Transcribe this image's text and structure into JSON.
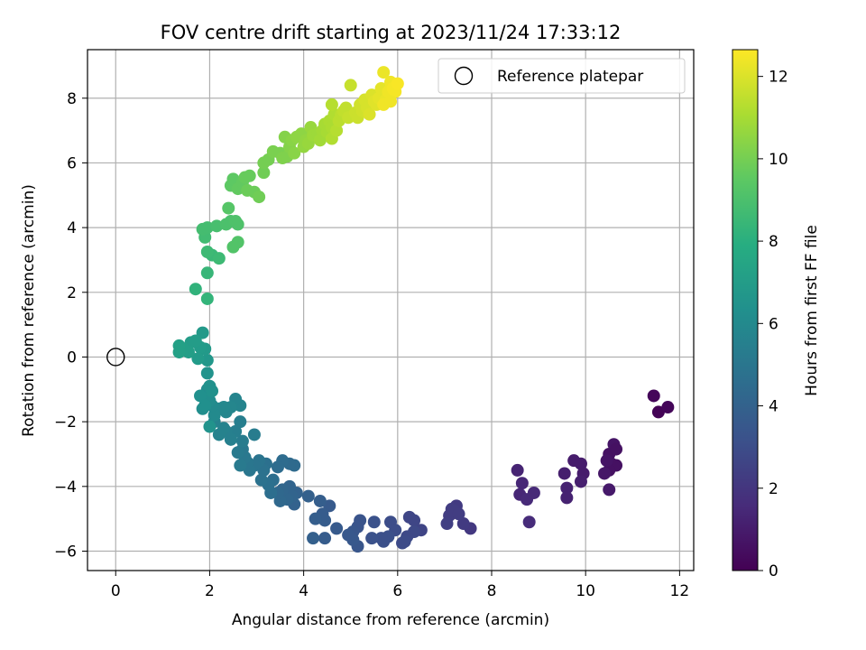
{
  "chart_data": {
    "type": "scatter",
    "title": "FOV centre drift starting at 2023/11/24 17:33:12",
    "xlabel": "Angular distance from reference (arcmin)",
    "ylabel": "Rotation from reference (arcmin)",
    "xlim": [
      -0.6,
      12.3
    ],
    "ylim": [
      -6.6,
      9.5
    ],
    "xticks": [
      0,
      2,
      4,
      6,
      8,
      10,
      12
    ],
    "yticks": [
      -6,
      -4,
      -2,
      0,
      2,
      4,
      6,
      8
    ],
    "grid": true,
    "legend": {
      "placement": "top-right",
      "entries": [
        "Reference platepar"
      ]
    },
    "reference_point": {
      "x": 0,
      "y": 0
    },
    "colorbar": {
      "label": "Hours from first FF file",
      "range": [
        0,
        12.65
      ],
      "ticks": [
        0,
        2,
        4,
        6,
        8,
        10,
        12
      ],
      "colormap": "viridis"
    },
    "points": [
      [
        11.45,
        -1.2,
        0.2
      ],
      [
        11.55,
        -1.7,
        0.1
      ],
      [
        11.75,
        -1.55,
        0.2
      ],
      [
        10.5,
        -3.0,
        0.6
      ],
      [
        10.6,
        -2.7,
        0.7
      ],
      [
        10.65,
        -2.85,
        0.6
      ],
      [
        10.55,
        -3.3,
        0.6
      ],
      [
        10.65,
        -3.35,
        0.6
      ],
      [
        10.5,
        -3.5,
        0.6
      ],
      [
        10.45,
        -3.2,
        0.7
      ],
      [
        10.4,
        -3.6,
        0.8
      ],
      [
        10.5,
        -4.1,
        0.9
      ],
      [
        9.75,
        -3.2,
        1.0
      ],
      [
        9.9,
        -3.3,
        1.0
      ],
      [
        9.95,
        -3.6,
        1.0
      ],
      [
        9.9,
        -3.85,
        1.1
      ],
      [
        9.55,
        -3.6,
        1.1
      ],
      [
        9.6,
        -4.05,
        1.2
      ],
      [
        9.6,
        -4.35,
        1.2
      ],
      [
        8.55,
        -3.5,
        1.3
      ],
      [
        8.65,
        -3.9,
        1.4
      ],
      [
        8.6,
        -4.25,
        1.4
      ],
      [
        8.75,
        -4.4,
        1.5
      ],
      [
        8.9,
        -4.2,
        1.5
      ],
      [
        8.8,
        -5.1,
        1.6
      ],
      [
        7.55,
        -5.3,
        2.1
      ],
      [
        7.4,
        -5.15,
        2.2
      ],
      [
        7.25,
        -4.6,
        2.2
      ],
      [
        7.15,
        -4.7,
        2.3
      ],
      [
        7.1,
        -4.9,
        2.3
      ],
      [
        7.05,
        -5.15,
        2.4
      ],
      [
        7.2,
        -4.75,
        2.3
      ],
      [
        7.3,
        -4.85,
        2.3
      ],
      [
        6.5,
        -5.35,
        2.6
      ],
      [
        6.35,
        -5.05,
        2.7
      ],
      [
        6.25,
        -4.95,
        2.7
      ],
      [
        6.35,
        -5.4,
        2.8
      ],
      [
        6.2,
        -5.55,
        2.8
      ],
      [
        6.1,
        -5.75,
        2.9
      ],
      [
        6.15,
        -5.7,
        2.9
      ],
      [
        5.85,
        -5.1,
        3.0
      ],
      [
        5.95,
        -5.35,
        3.0
      ],
      [
        5.8,
        -5.55,
        3.1
      ],
      [
        5.7,
        -5.7,
        3.1
      ],
      [
        5.65,
        -5.6,
        3.1
      ],
      [
        5.5,
        -5.1,
        3.2
      ],
      [
        5.45,
        -5.6,
        3.2
      ],
      [
        5.2,
        -5.05,
        3.3
      ],
      [
        5.15,
        -5.25,
        3.3
      ],
      [
        5.05,
        -5.4,
        3.4
      ],
      [
        5.15,
        -5.85,
        3.4
      ],
      [
        5.05,
        -5.65,
        3.5
      ],
      [
        4.95,
        -5.5,
        3.5
      ],
      [
        4.7,
        -5.3,
        3.6
      ],
      [
        4.55,
        -4.6,
        3.6
      ],
      [
        4.45,
        -5.05,
        3.7
      ],
      [
        4.45,
        -5.6,
        3.7
      ],
      [
        4.4,
        -4.85,
        3.7
      ],
      [
        4.35,
        -4.45,
        3.8
      ],
      [
        4.25,
        -5.0,
        3.8
      ],
      [
        4.2,
        -5.6,
        3.9
      ],
      [
        4.1,
        -4.3,
        3.9
      ],
      [
        3.8,
        -4.55,
        4.0
      ],
      [
        3.85,
        -4.2,
        4.0
      ],
      [
        3.7,
        -4.0,
        4.1
      ],
      [
        3.75,
        -4.3,
        4.1
      ],
      [
        3.65,
        -4.4,
        4.2
      ],
      [
        3.55,
        -4.1,
        4.2
      ],
      [
        3.5,
        -4.45,
        4.3
      ],
      [
        3.45,
        -4.2,
        4.3
      ],
      [
        3.8,
        -3.35,
        4.4
      ],
      [
        3.7,
        -3.3,
        4.4
      ],
      [
        3.55,
        -3.2,
        4.5
      ],
      [
        3.45,
        -3.4,
        4.5
      ],
      [
        3.35,
        -3.8,
        4.6
      ],
      [
        3.3,
        -4.2,
        4.6
      ],
      [
        3.25,
        -3.95,
        4.7
      ],
      [
        3.2,
        -3.3,
        4.7
      ],
      [
        3.15,
        -3.5,
        4.8
      ],
      [
        3.1,
        -3.8,
        4.8
      ],
      [
        3.05,
        -3.2,
        4.9
      ],
      [
        2.95,
        -3.35,
        4.9
      ],
      [
        2.85,
        -3.5,
        5.0
      ],
      [
        2.8,
        -3.25,
        5.0
      ],
      [
        2.75,
        -3.1,
        5.1
      ],
      [
        2.7,
        -2.85,
        5.1
      ],
      [
        2.65,
        -3.35,
        5.2
      ],
      [
        2.6,
        -2.95,
        5.2
      ],
      [
        2.95,
        -2.4,
        5.3
      ],
      [
        2.7,
        -2.6,
        5.3
      ],
      [
        2.65,
        -2.0,
        5.4
      ],
      [
        2.55,
        -2.3,
        5.4
      ],
      [
        2.45,
        -2.55,
        5.5
      ],
      [
        2.35,
        -2.3,
        5.5
      ],
      [
        2.3,
        -2.2,
        5.6
      ],
      [
        2.2,
        -2.4,
        5.6
      ],
      [
        2.1,
        -2.0,
        5.6
      ],
      [
        2.65,
        -1.5,
        5.7
      ],
      [
        2.55,
        -1.3,
        5.7
      ],
      [
        2.45,
        -1.55,
        5.8
      ],
      [
        2.35,
        -1.7,
        5.8
      ],
      [
        2.3,
        -1.55,
        5.9
      ],
      [
        2.2,
        -1.6,
        5.9
      ],
      [
        2.1,
        -1.8,
        6.0
      ],
      [
        2.05,
        -1.5,
        6.0
      ],
      [
        2.0,
        -1.35,
        6.1
      ],
      [
        1.95,
        -1.0,
        6.1
      ],
      [
        1.9,
        -1.25,
        6.2
      ],
      [
        1.85,
        -1.6,
        6.2
      ],
      [
        1.8,
        -1.2,
        6.3
      ],
      [
        1.9,
        -1.5,
        6.3
      ],
      [
        2.0,
        -0.9,
        6.4
      ],
      [
        2.05,
        -1.05,
        6.4
      ],
      [
        2.0,
        -2.15,
        6.5
      ],
      [
        1.95,
        -0.5,
        6.5
      ],
      [
        1.95,
        -0.1,
        6.7
      ],
      [
        1.9,
        0.25,
        6.8
      ],
      [
        1.85,
        0.75,
        6.8
      ],
      [
        1.8,
        0.3,
        6.9
      ],
      [
        1.75,
        -0.05,
        6.9
      ],
      [
        1.7,
        0.5,
        7.0
      ],
      [
        1.6,
        0.45,
        7.0
      ],
      [
        1.55,
        0.15,
        7.1
      ],
      [
        1.45,
        0.25,
        7.1
      ],
      [
        1.35,
        0.35,
        7.2
      ],
      [
        1.35,
        0.15,
        7.2
      ],
      [
        1.7,
        2.1,
        8.2
      ],
      [
        1.95,
        1.8,
        8.3
      ],
      [
        1.95,
        2.6,
        8.4
      ],
      [
        2.05,
        3.15,
        8.5
      ],
      [
        1.95,
        3.25,
        8.6
      ],
      [
        2.2,
        3.05,
        8.6
      ],
      [
        1.9,
        3.7,
        8.7
      ],
      [
        1.85,
        3.95,
        8.8
      ],
      [
        1.95,
        4.0,
        8.8
      ],
      [
        2.15,
        4.05,
        8.9
      ],
      [
        2.35,
        4.1,
        9.0
      ],
      [
        2.45,
        4.2,
        9.0
      ],
      [
        2.55,
        4.2,
        9.1
      ],
      [
        2.6,
        4.1,
        9.1
      ],
      [
        2.6,
        3.55,
        9.2
      ],
      [
        2.5,
        3.4,
        9.2
      ],
      [
        2.4,
        4.6,
        9.3
      ],
      [
        2.45,
        5.3,
        9.5
      ],
      [
        2.5,
        5.5,
        9.5
      ],
      [
        2.6,
        5.2,
        9.6
      ],
      [
        2.7,
        5.4,
        9.6
      ],
      [
        2.75,
        5.55,
        9.7
      ],
      [
        2.85,
        5.6,
        9.7
      ],
      [
        2.8,
        5.15,
        9.8
      ],
      [
        2.95,
        5.1,
        9.8
      ],
      [
        3.05,
        4.95,
        9.9
      ],
      [
        3.15,
        5.7,
        9.9
      ],
      [
        3.15,
        6.0,
        10.0
      ],
      [
        3.25,
        6.1,
        10.0
      ],
      [
        3.35,
        6.35,
        10.1
      ],
      [
        3.5,
        6.3,
        10.1
      ],
      [
        3.55,
        6.15,
        10.2
      ],
      [
        3.65,
        6.2,
        10.2
      ],
      [
        3.6,
        6.8,
        10.3
      ],
      [
        3.7,
        6.5,
        10.3
      ],
      [
        3.75,
        6.7,
        10.4
      ],
      [
        3.8,
        6.3,
        10.4
      ],
      [
        3.85,
        6.8,
        10.5
      ],
      [
        3.95,
        6.9,
        10.5
      ],
      [
        4.0,
        6.5,
        10.6
      ],
      [
        4.05,
        6.7,
        10.6
      ],
      [
        4.1,
        6.6,
        10.7
      ],
      [
        4.15,
        7.1,
        10.7
      ],
      [
        4.2,
        6.85,
        10.8
      ],
      [
        4.3,
        6.9,
        10.8
      ],
      [
        4.35,
        6.7,
        10.9
      ],
      [
        4.4,
        7.0,
        10.9
      ],
      [
        4.45,
        7.2,
        11.0
      ],
      [
        4.5,
        6.95,
        11.0
      ],
      [
        4.55,
        7.3,
        11.1
      ],
      [
        4.6,
        7.1,
        11.1
      ],
      [
        4.6,
        6.75,
        11.2
      ],
      [
        4.65,
        7.5,
        11.2
      ],
      [
        4.6,
        7.8,
        11.3
      ],
      [
        4.7,
        7.0,
        11.3
      ],
      [
        4.75,
        7.3,
        11.4
      ],
      [
        4.8,
        7.5,
        11.4
      ],
      [
        4.85,
        7.6,
        11.5
      ],
      [
        4.9,
        7.7,
        11.5
      ],
      [
        4.95,
        7.4,
        11.6
      ],
      [
        5.0,
        8.4,
        11.6
      ],
      [
        5.1,
        7.55,
        11.7
      ],
      [
        5.15,
        7.4,
        11.7
      ],
      [
        5.2,
        7.8,
        11.8
      ],
      [
        5.25,
        7.6,
        11.8
      ],
      [
        5.3,
        7.95,
        11.9
      ],
      [
        5.35,
        7.7,
        11.9
      ],
      [
        5.4,
        7.5,
        12.0
      ],
      [
        5.45,
        8.1,
        12.0
      ],
      [
        5.5,
        7.9,
        12.1
      ],
      [
        5.55,
        7.8,
        12.1
      ],
      [
        5.6,
        8.0,
        12.2
      ],
      [
        5.65,
        8.3,
        12.2
      ],
      [
        5.7,
        8.8,
        12.3
      ],
      [
        5.75,
        7.95,
        12.3
      ],
      [
        5.8,
        8.2,
        12.4
      ],
      [
        5.85,
        8.5,
        12.4
      ],
      [
        5.9,
        8.3,
        12.5
      ],
      [
        5.95,
        8.2,
        12.5
      ],
      [
        6.0,
        8.45,
        12.55
      ],
      [
        5.7,
        7.8,
        12.4
      ],
      [
        5.85,
        7.9,
        12.4
      ]
    ]
  }
}
